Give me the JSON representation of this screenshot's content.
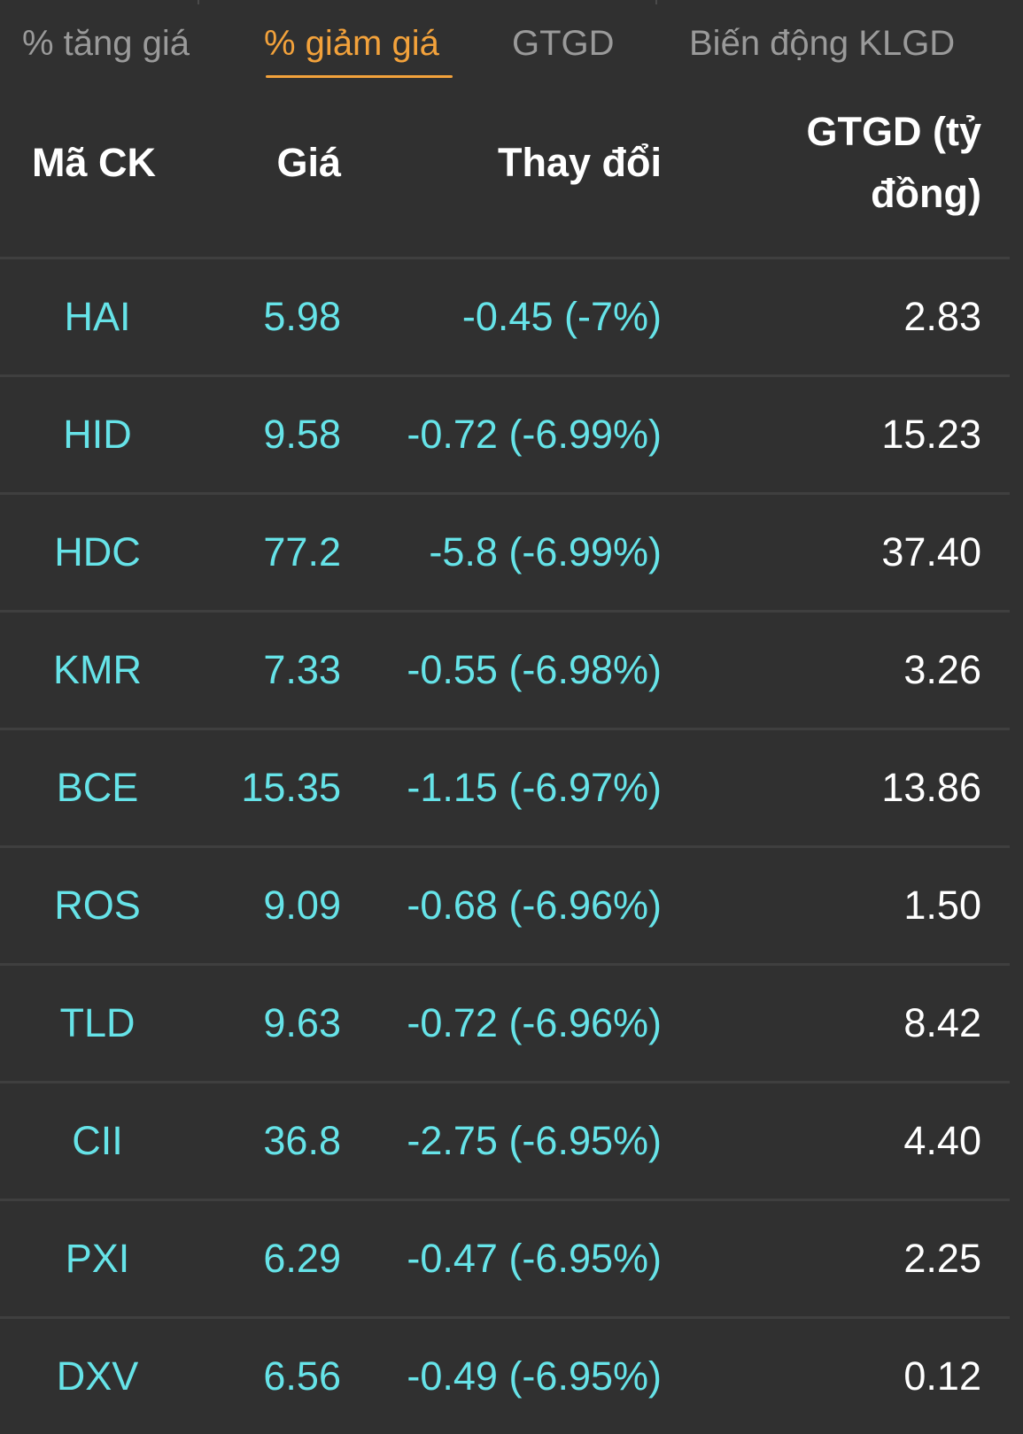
{
  "tabs": [
    {
      "label": "% tăng giá",
      "active": false
    },
    {
      "label": "% giảm giá",
      "active": true
    },
    {
      "label": "GTGD",
      "active": false
    },
    {
      "label": "Biến động KLGD",
      "active": false
    }
  ],
  "table": {
    "headers": {
      "symbol": "Mã CK",
      "price": "Giá",
      "change": "Thay đổi",
      "value_line1": "GTGD (tỷ",
      "value_line2": "đồng)"
    },
    "rows": [
      {
        "symbol": "HAI",
        "price": "5.98",
        "change": "-0.45 (-7%)",
        "value": "2.83"
      },
      {
        "symbol": "HID",
        "price": "9.58",
        "change": "-0.72 (-6.99%)",
        "value": "15.23"
      },
      {
        "symbol": "HDC",
        "price": "77.2",
        "change": "-5.8 (-6.99%)",
        "value": "37.40"
      },
      {
        "symbol": "KMR",
        "price": "7.33",
        "change": "-0.55 (-6.98%)",
        "value": "3.26"
      },
      {
        "symbol": "BCE",
        "price": "15.35",
        "change": "-1.15 (-6.97%)",
        "value": "13.86"
      },
      {
        "symbol": "ROS",
        "price": "9.09",
        "change": "-0.68 (-6.96%)",
        "value": "1.50"
      },
      {
        "symbol": "TLD",
        "price": "9.63",
        "change": "-0.72 (-6.96%)",
        "value": "8.42"
      },
      {
        "symbol": "CII",
        "price": "36.8",
        "change": "-2.75 (-6.95%)",
        "value": "4.40"
      },
      {
        "symbol": "PXI",
        "price": "6.29",
        "change": "-0.47 (-6.95%)",
        "value": "2.25"
      },
      {
        "symbol": "DXV",
        "price": "6.56",
        "change": "-0.49 (-6.95%)",
        "value": "0.12"
      }
    ]
  },
  "colors": {
    "background": "#303030",
    "active_tab": "#f3a23b",
    "inactive_tab": "#9a9a9a",
    "down_value": "#66e3e8",
    "neutral_value": "#ffffff",
    "divider": "#3f3f3f"
  }
}
